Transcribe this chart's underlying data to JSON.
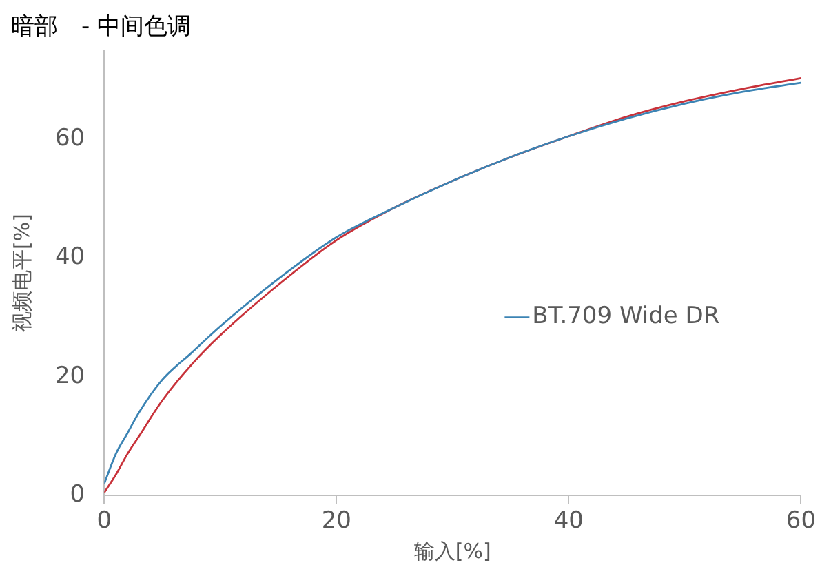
{
  "chart_data": {
    "type": "line",
    "title": "暗部　- 中间色调",
    "xlabel": "输入[%]",
    "ylabel": "视频电平[%]",
    "xlim": [
      0,
      60
    ],
    "xticks": [
      0,
      20,
      40,
      60
    ],
    "ylim": [
      0,
      75
    ],
    "yticks": [
      0,
      20,
      40,
      60
    ],
    "grid": false,
    "legend": "right",
    "marker": "none",
    "line_style": "solid",
    "series": [
      {
        "name": "BT.709 Wide DR",
        "color": "#3c84b4",
        "x": [
          0,
          1,
          2,
          3,
          5,
          7.5,
          10,
          15,
          20,
          25,
          30,
          35,
          40,
          45,
          50,
          55,
          60
        ],
        "values": [
          2,
          7,
          10.5,
          14,
          19.5,
          24,
          28.5,
          36.5,
          43.5,
          48.5,
          53,
          57,
          60.5,
          63.5,
          66,
          68,
          69.5
        ]
      },
      {
        "color": "#c8323a",
        "x": [
          0,
          1,
          2,
          3,
          5,
          7.5,
          10,
          15,
          20,
          25,
          30,
          35,
          40,
          45,
          50,
          55,
          60
        ],
        "values": [
          0.5,
          3.5,
          7,
          10,
          16,
          22,
          27,
          35.5,
          43,
          48.5,
          53,
          57,
          60.5,
          63.8,
          66.4,
          68.5,
          70.3
        ]
      }
    ]
  }
}
